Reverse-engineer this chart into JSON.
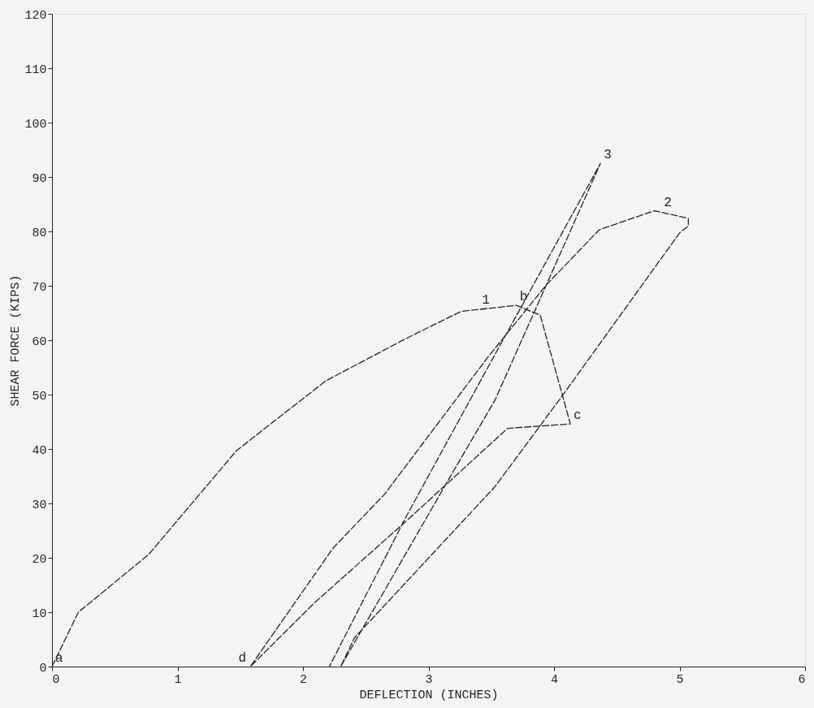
{
  "chart_data": {
    "type": "line",
    "xlabel": "DEFLECTION (INCHES)",
    "ylabel": "SHEAR FORCE (KIPS)",
    "xlim": [
      0,
      6
    ],
    "ylim": [
      0,
      120
    ],
    "xticks": [
      0,
      1,
      2,
      3,
      4,
      5,
      6
    ],
    "yticks": [
      0,
      10,
      20,
      30,
      40,
      50,
      60,
      70,
      80,
      90,
      100,
      110,
      120
    ],
    "grid": false,
    "legend": false,
    "marker": "none",
    "line_style": "dashed",
    "series": [
      {
        "color": "#222222",
        "x": [
          0,
          0.21,
          0.77,
          1.47,
          2.18,
          2.82,
          3.26,
          3.7,
          3.89,
          4.13,
          3.63,
          2.82,
          2.09,
          1.58,
          2.24,
          2.65,
          3.47,
          3.94,
          4.36,
          4.8,
          5.07,
          5.07,
          5.0,
          4.06,
          3.53,
          2.41,
          2.3,
          3.2,
          3.53,
          4.37,
          3.53,
          2.82,
          2.21
        ],
        "values": [
          0,
          10,
          20.6,
          39.7,
          52.5,
          60.3,
          65.3,
          66.4,
          64.6,
          44.6,
          43.8,
          26.7,
          11.7,
          0,
          21.8,
          31.7,
          56.8,
          70.2,
          80.3,
          83.8,
          82.4,
          81,
          79.7,
          49.6,
          33.1,
          5.3,
          0,
          36,
          49,
          92.5,
          57.4,
          27.5,
          0
        ]
      }
    ],
    "annotations": [
      {
        "text": "a",
        "x": 0,
        "y": 0
      },
      {
        "text": "d",
        "x": 1.58,
        "y": 0
      },
      {
        "text": "1",
        "x": 3.4,
        "y": 65.8
      },
      {
        "text": "b",
        "x": 3.7,
        "y": 66.4
      },
      {
        "text": "c",
        "x": 4.13,
        "y": 44.6
      },
      {
        "text": "2",
        "x": 4.85,
        "y": 83.8
      },
      {
        "text": "3",
        "x": 4.37,
        "y": 92.5
      }
    ]
  }
}
